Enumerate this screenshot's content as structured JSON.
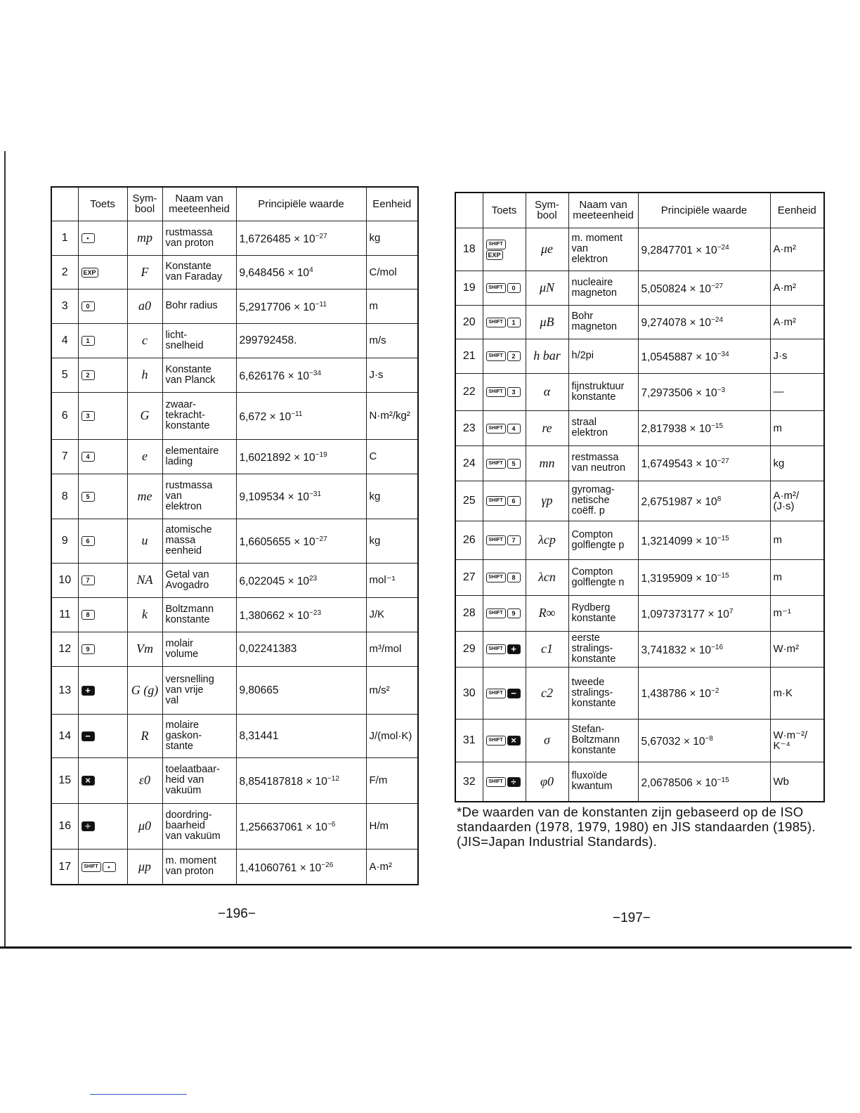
{
  "headers": {
    "n": "",
    "key": "Toets",
    "symbol": "Sym-\nbool",
    "name": "Naam van\nmeeteenheid",
    "value": "Principiële waarde",
    "unit": "Eenheid"
  },
  "left_rows": [
    {
      "n": "1",
      "keys": [
        "•"
      ],
      "symbol": "mp",
      "name": "rustmassa\nvan proton",
      "mantissa": "1,6726485 × 10",
      "exp": "−27",
      "unit": "kg"
    },
    {
      "n": "2",
      "keys": [
        "EXP"
      ],
      "symbol": "F",
      "name": "Konstante\nvan Faraday",
      "mantissa": "9,648456 × 10",
      "exp": "4",
      "unit": "C/mol"
    },
    {
      "n": "3",
      "keys": [
        "0"
      ],
      "symbol": "a0",
      "name": "Bohr radius",
      "mantissa": "5,2917706 × 10",
      "exp": "−11",
      "unit": "m"
    },
    {
      "n": "4",
      "keys": [
        "1"
      ],
      "symbol": "c",
      "name": "licht-\nsnelheid",
      "mantissa": "299792458.",
      "exp": "",
      "unit": "m/s"
    },
    {
      "n": "5",
      "keys": [
        "2"
      ],
      "symbol": "h",
      "name": "Konstante\nvan Planck",
      "mantissa": "6,626176 × 10",
      "exp": "−34",
      "unit": "J·s"
    },
    {
      "n": "6",
      "keys": [
        "3"
      ],
      "symbol": "G",
      "name": "zwaar-\ntekracht-\nkonstante",
      "mantissa": "6,672 × 10",
      "exp": "−11",
      "unit": "N·m²/kg²"
    },
    {
      "n": "7",
      "keys": [
        "4"
      ],
      "symbol": "e",
      "name": "elementaire\nlading",
      "mantissa": "1,6021892 × 10",
      "exp": "−19",
      "unit": "C"
    },
    {
      "n": "8",
      "keys": [
        "5"
      ],
      "symbol": "me",
      "name": "rustmassa\nvan\nelektron",
      "mantissa": "9,109534 × 10",
      "exp": "−31",
      "unit": "kg"
    },
    {
      "n": "9",
      "keys": [
        "6"
      ],
      "symbol": "u",
      "name": "atomische\nmassa\neenheid",
      "mantissa": "1,6605655 × 10",
      "exp": "−27",
      "unit": "kg"
    },
    {
      "n": "10",
      "keys": [
        "7"
      ],
      "symbol": "NA",
      "name": "Getal van\nAvogadro",
      "mantissa": "6,022045 × 10",
      "exp": "23",
      "unit": "mol⁻¹"
    },
    {
      "n": "11",
      "keys": [
        "8"
      ],
      "symbol": "k",
      "name": "Boltzmann\nkonstante",
      "mantissa": "1,380662 × 10",
      "exp": "−23",
      "unit": "J/K"
    },
    {
      "n": "12",
      "keys": [
        "9"
      ],
      "symbol": "Vm",
      "name": "molair\nvolume",
      "mantissa": "0,02241383",
      "exp": "",
      "unit": "m³/mol"
    },
    {
      "n": "13",
      "keys": [
        "+"
      ],
      "symbol": "G (g)",
      "name": "versnelling\nvan vrije\nval",
      "mantissa": "9,80665",
      "exp": "",
      "unit": "m/s²"
    },
    {
      "n": "14",
      "keys": [
        "−"
      ],
      "symbol": "R",
      "name": "molaire\ngaskon-\nstante",
      "mantissa": "8,31441",
      "exp": "",
      "unit": "J/(mol·K)"
    },
    {
      "n": "15",
      "keys": [
        "×"
      ],
      "symbol": "ε0",
      "name": "toelaatbaar-\nheid van\nvakuüm",
      "mantissa": "8,854187818 × 10",
      "exp": "−12",
      "unit": "F/m"
    },
    {
      "n": "16",
      "keys": [
        "÷"
      ],
      "symbol": "μ0",
      "name": "doordring-\nbaarheid\nvan vakuüm",
      "mantissa": "1,256637061 × 10",
      "exp": "−6",
      "unit": "H/m"
    },
    {
      "n": "17",
      "keys": [
        "SHIFT",
        "•"
      ],
      "symbol": "μp",
      "name": "m. moment\nvan proton",
      "mantissa": "1,41060761 × 10",
      "exp": "−26",
      "unit": "A·m²"
    }
  ],
  "right_rows": [
    {
      "n": "18",
      "keys": [
        "SHIFT",
        "EXP"
      ],
      "symbol": "μe",
      "name": "m. moment\nvan\nelektron",
      "mantissa": "9,2847701 × 10",
      "exp": "−24",
      "unit": "A·m²"
    },
    {
      "n": "19",
      "keys": [
        "SHIFT",
        "0"
      ],
      "symbol": "μN",
      "name": "nucleaire\nmagneton",
      "mantissa": "5,050824 × 10",
      "exp": "−27",
      "unit": "A·m²"
    },
    {
      "n": "20",
      "keys": [
        "SHIFT",
        "1"
      ],
      "symbol": "μB",
      "name": "Bohr\nmagneton",
      "mantissa": "9,274078 × 10",
      "exp": "−24",
      "unit": "A·m²"
    },
    {
      "n": "21",
      "keys": [
        "SHIFT",
        "2"
      ],
      "symbol": "h bar",
      "name": "h/2pi",
      "mantissa": "1,0545887 × 10",
      "exp": "−34",
      "unit": "J·s"
    },
    {
      "n": "22",
      "keys": [
        "SHIFT",
        "3"
      ],
      "symbol": "α",
      "name": "fijnstruktuur\nkonstante",
      "mantissa": "7,2973506 × 10",
      "exp": "−3",
      "unit": "—"
    },
    {
      "n": "23",
      "keys": [
        "SHIFT",
        "4"
      ],
      "symbol": "re",
      "name": "straal\nelektron",
      "mantissa": "2,817938 × 10",
      "exp": "−15",
      "unit": "m"
    },
    {
      "n": "24",
      "keys": [
        "SHIFT",
        "5"
      ],
      "symbol": "mn",
      "name": "restmassa\nvan neutron",
      "mantissa": "1,6749543 × 10",
      "exp": "−27",
      "unit": "kg"
    },
    {
      "n": "25",
      "keys": [
        "SHIFT",
        "6"
      ],
      "symbol": "γp",
      "name": "gyromag-\nnetische\ncoëff. p",
      "mantissa": "2,6751987 × 10",
      "exp": "8",
      "unit": "A·m²/\n(J·s)"
    },
    {
      "n": "26",
      "keys": [
        "SHIFT",
        "7"
      ],
      "symbol": "λcp",
      "name": "Compton\ngolflengte p",
      "mantissa": "1,3214099 × 10",
      "exp": "−15",
      "unit": "m"
    },
    {
      "n": "27",
      "keys": [
        "SHIFT",
        "8"
      ],
      "symbol": "λcn",
      "name": "Compton\ngolflengte n",
      "mantissa": "1,3195909 × 10",
      "exp": "−15",
      "unit": "m"
    },
    {
      "n": "28",
      "keys": [
        "SHIFT",
        "9"
      ],
      "symbol": "R∞",
      "name": "Rydberg\nkonstante",
      "mantissa": "1,097373177 × 10",
      "exp": "7",
      "unit": "m⁻¹"
    },
    {
      "n": "29",
      "keys": [
        "SHIFT",
        "+"
      ],
      "symbol": "c1",
      "name": "eerste\nstralings-\nkonstante",
      "mantissa": "3,741832 × 10",
      "exp": "−16",
      "unit": "W·m²"
    },
    {
      "n": "30",
      "keys": [
        "SHIFT",
        "−"
      ],
      "symbol": "c2",
      "name": "tweede\nstralings-\nkonstante",
      "mantissa": "1,438786 × 10",
      "exp": "−2",
      "unit": "m·K"
    },
    {
      "n": "31",
      "keys": [
        "SHIFT",
        "×"
      ],
      "symbol": "σ",
      "name": "Stefan-\nBoltzmann\nkonstante",
      "mantissa": "5,67032 × 10",
      "exp": "−8",
      "unit": "W·m⁻²/\nK⁻⁴"
    },
    {
      "n": "32",
      "keys": [
        "SHIFT",
        "÷"
      ],
      "symbol": "φ0",
      "name": "fluxoïde\nkwantum",
      "mantissa": "2,0678506 × 10",
      "exp": "−15",
      "unit": "Wb"
    }
  ],
  "footnote": "*De waarden van de konstanten zijn gebaseerd op de ISO standaarden (1978, 1979, 1980) en JIS standaarden (1985). (JIS=Japan Industrial Standards).",
  "page_left": "−196−",
  "page_right": "−197−"
}
